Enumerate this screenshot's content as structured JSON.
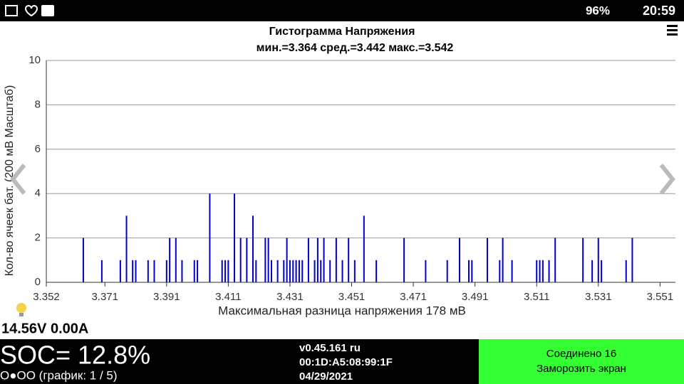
{
  "status_bar": {
    "battery": "96%",
    "time": "20:59"
  },
  "chart_data": {
    "type": "bar",
    "title": "Гистограмма Напряжения",
    "subtitle": "мин.=3.364  сред.=3.442  макс.=3.542",
    "x_label": "Максимальная разница напряжения 178 мВ",
    "y_label": "Кол-во ячеек бат. (200 мВ Масштаб)",
    "color": "#0000d0",
    "xlim": [
      3.352,
      3.556
    ],
    "xticks": [
      3.352,
      3.371,
      3.391,
      3.411,
      3.431,
      3.451,
      3.471,
      3.491,
      3.511,
      3.531,
      3.551
    ],
    "ylim": [
      0,
      10
    ],
    "yticks": [
      0,
      2,
      4,
      6,
      8,
      10
    ],
    "grid": true,
    "x": [
      3.364,
      3.37,
      3.376,
      3.378,
      3.38,
      3.381,
      3.385,
      3.387,
      3.391,
      3.392,
      3.394,
      3.396,
      3.4,
      3.401,
      3.405,
      3.409,
      3.41,
      3.411,
      3.413,
      3.415,
      3.417,
      3.419,
      3.42,
      3.423,
      3.424,
      3.425,
      3.427,
      3.429,
      3.43,
      3.431,
      3.432,
      3.433,
      3.434,
      3.435,
      3.437,
      3.439,
      3.44,
      3.441,
      3.442,
      3.444,
      3.446,
      3.448,
      3.45,
      3.452,
      3.455,
      3.459,
      3.468,
      3.475,
      3.482,
      3.486,
      3.489,
      3.49,
      3.495,
      3.499,
      3.5,
      3.503,
      3.511,
      3.512,
      3.513,
      3.515,
      3.517,
      3.526,
      3.529,
      3.531,
      3.532,
      3.54,
      3.542
    ],
    "values": [
      2,
      1,
      1,
      3,
      1,
      1,
      1,
      1,
      1,
      2,
      2,
      1,
      1,
      1,
      4,
      1,
      1,
      1,
      4,
      2,
      2,
      3,
      1,
      2,
      2,
      1,
      1,
      1,
      2,
      1,
      1,
      1,
      1,
      1,
      2,
      1,
      2,
      1,
      2,
      1,
      2,
      1,
      2,
      1,
      3,
      1,
      2,
      1,
      1,
      2,
      1,
      1,
      2,
      1,
      2,
      1,
      1,
      1,
      1,
      1,
      2,
      2,
      1,
      2,
      1,
      1,
      2
    ]
  },
  "readout": "14.56V 0.00A",
  "footer": {
    "soc": "SOC= 12.8%",
    "page": "O●OO (график: 1 / 5)",
    "version": "v0.45.161 ru",
    "mac": "00:1D:A5:08:99:1F",
    "date": "04/29/2021",
    "connected": "Соединено 16",
    "freeze": "Заморозить экран"
  }
}
